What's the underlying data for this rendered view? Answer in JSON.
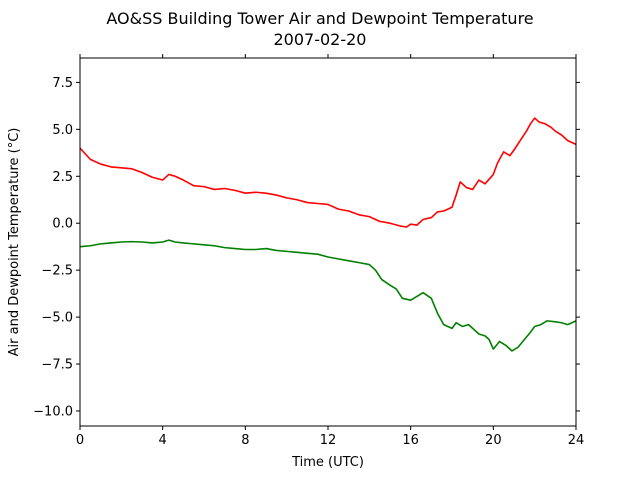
{
  "chart_data": {
    "type": "line",
    "title": "AO&SS Building Tower Air and Dewpoint Temperature",
    "subtitle": "2007-02-20",
    "xlabel": "Time (UTC)",
    "ylabel": "Air and Dewpoint Temperature (°C)",
    "xlim": [
      0,
      24
    ],
    "ylim": [
      -10.8,
      8.8
    ],
    "xticks": [
      0,
      4,
      8,
      12,
      16,
      20,
      24
    ],
    "yticks": [
      -10.0,
      -7.5,
      -5.0,
      -2.5,
      0.0,
      2.5,
      5.0,
      7.5
    ],
    "xtick_labels": [
      "0",
      "4",
      "8",
      "12",
      "16",
      "20",
      "24"
    ],
    "ytick_labels": [
      "−10.0",
      "−7.5",
      "−5.0",
      "−2.5",
      "0.0",
      "2.5",
      "5.0",
      "7.5"
    ],
    "grid": false,
    "series": [
      {
        "color": "#ff0000",
        "x": [
          0,
          0.5,
          1,
          1.5,
          2,
          2.5,
          3,
          3.5,
          4,
          4.3,
          4.6,
          5,
          5.5,
          6,
          6.5,
          7,
          7.5,
          8,
          8.5,
          9,
          9.5,
          10,
          10.5,
          11,
          11.5,
          12,
          12.5,
          13,
          13.5,
          14,
          14.5,
          15,
          15.5,
          15.8,
          16,
          16.3,
          16.6,
          17,
          17.3,
          17.6,
          18,
          18.2,
          18.4,
          18.7,
          19,
          19.3,
          19.6,
          20,
          20.2,
          20.5,
          20.8,
          21,
          21.3,
          21.6,
          21.8,
          22,
          22.2,
          22.5,
          22.8,
          23,
          23.3,
          23.6,
          24
        ],
        "values": [
          4.0,
          3.4,
          3.15,
          3.0,
          2.95,
          2.9,
          2.7,
          2.45,
          2.3,
          2.6,
          2.5,
          2.3,
          2.0,
          1.95,
          1.8,
          1.85,
          1.75,
          1.6,
          1.65,
          1.6,
          1.5,
          1.35,
          1.25,
          1.1,
          1.05,
          1.0,
          0.75,
          0.65,
          0.45,
          0.35,
          0.1,
          0.0,
          -0.15,
          -0.2,
          -0.05,
          -0.1,
          0.2,
          0.3,
          0.6,
          0.65,
          0.85,
          1.5,
          2.2,
          1.9,
          1.8,
          2.3,
          2.1,
          2.6,
          3.2,
          3.8,
          3.6,
          3.9,
          4.4,
          4.9,
          5.3,
          5.6,
          5.4,
          5.3,
          5.1,
          4.9,
          4.7,
          4.4,
          4.2
        ]
      },
      {
        "color": "#008000",
        "x": [
          0,
          0.5,
          1,
          1.5,
          2,
          2.5,
          3,
          3.5,
          4,
          4.3,
          4.6,
          5,
          5.5,
          6,
          6.5,
          7,
          7.5,
          8,
          8.5,
          9,
          9.5,
          10,
          10.5,
          11,
          11.5,
          12,
          12.5,
          13,
          13.5,
          14,
          14.3,
          14.6,
          15,
          15.3,
          15.6,
          16,
          16.3,
          16.6,
          17,
          17.3,
          17.6,
          18,
          18.2,
          18.5,
          18.8,
          19,
          19.3,
          19.6,
          19.8,
          20,
          20.3,
          20.6,
          20.9,
          21.2,
          21.5,
          21.8,
          22,
          22.3,
          22.6,
          23,
          23.3,
          23.6,
          24
        ],
        "values": [
          -1.25,
          -1.2,
          -1.1,
          -1.05,
          -1.0,
          -0.98,
          -1.0,
          -1.05,
          -1.0,
          -0.9,
          -1.0,
          -1.05,
          -1.1,
          -1.15,
          -1.2,
          -1.3,
          -1.35,
          -1.4,
          -1.4,
          -1.35,
          -1.45,
          -1.5,
          -1.55,
          -1.6,
          -1.65,
          -1.8,
          -1.9,
          -2.0,
          -2.1,
          -2.2,
          -2.5,
          -3.0,
          -3.3,
          -3.5,
          -4.0,
          -4.1,
          -3.9,
          -3.7,
          -4.0,
          -4.8,
          -5.4,
          -5.6,
          -5.3,
          -5.5,
          -5.4,
          -5.6,
          -5.9,
          -6.0,
          -6.2,
          -6.7,
          -6.3,
          -6.5,
          -6.8,
          -6.6,
          -6.2,
          -5.8,
          -5.5,
          -5.4,
          -5.2,
          -5.25,
          -5.3,
          -5.4,
          -5.2
        ]
      }
    ]
  }
}
